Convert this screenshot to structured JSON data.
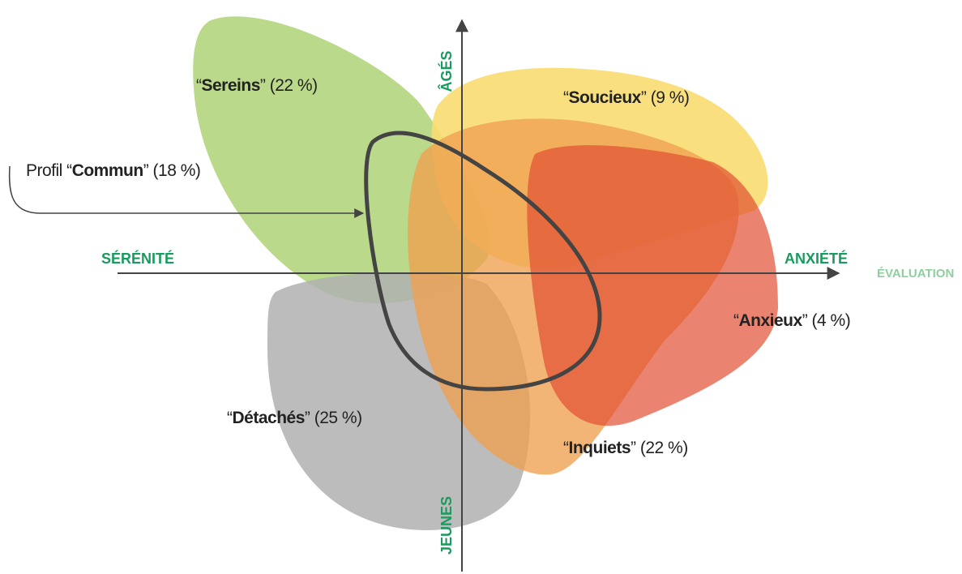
{
  "axes": {
    "left": "SÉRÉNITÉ",
    "right": "ANXIÉTÉ",
    "x_title": "ÉVALUATION",
    "top": "ÂGÉS",
    "bottom": "JEUNES"
  },
  "groups": [
    {
      "before": "“",
      "bold": "Sereins",
      "after": "” (22 %)"
    },
    {
      "before": "“",
      "bold": "Soucieux",
      "after": "” (9 %)"
    },
    {
      "before": "Profil “",
      "bold": "Commun",
      "after": "” (18 %)"
    },
    {
      "before": "“",
      "bold": "Anxieux",
      "after": "” (4 %)"
    },
    {
      "before": "“",
      "bold": "Détachés",
      "after": "” (25 %)"
    },
    {
      "before": "“",
      "bold": "Inquiets",
      "after": "” (22 %)"
    }
  ]
}
